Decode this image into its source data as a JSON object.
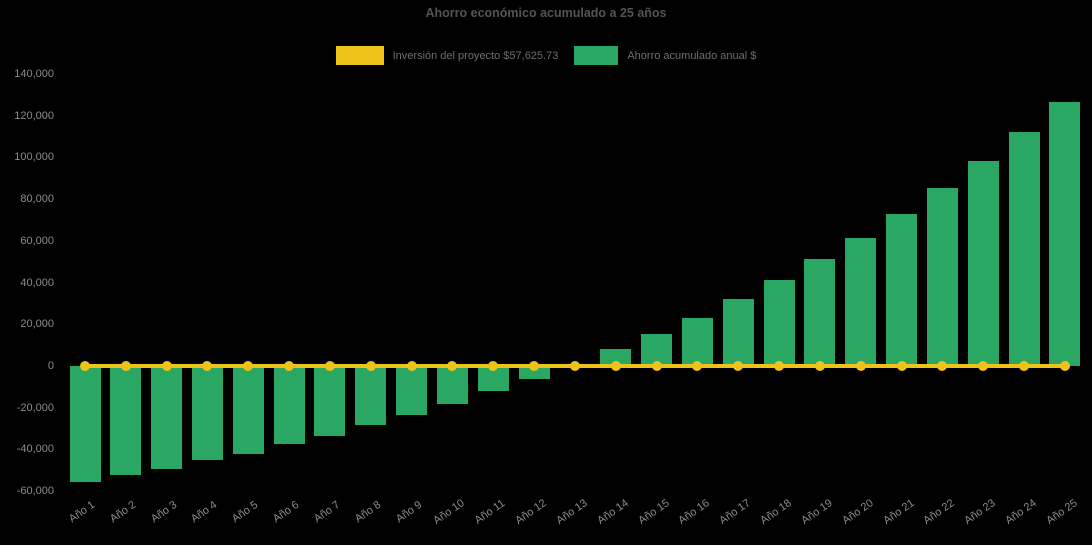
{
  "colors": {
    "background": "#000000",
    "bar": "#2aa763",
    "line": "#eec319",
    "title_text": "#545454",
    "axis_text": "#8c8c8c",
    "legend_text": "#6e6e6e"
  },
  "chart_data": {
    "type": "bar",
    "title": "Ahorro económico acumulado a 25 años",
    "categories": [
      "Año 1",
      "Año 2",
      "Año 3",
      "Año 4",
      "Año 5",
      "Año 6",
      "Año 7",
      "Año 8",
      "Año 9",
      "Año 10",
      "Año 11",
      "Año 12",
      "Año 13",
      "Año 14",
      "Año 15",
      "Año 16",
      "Año 17",
      "Año 18",
      "Año 19",
      "Año 20",
      "Año 21",
      "Año 22",
      "Año 23",
      "Año 24",
      "Año 25"
    ],
    "series": [
      {
        "name": "Inversión del proyecto $57,625.73",
        "type": "line",
        "color": "#eec319",
        "values": [
          0,
          0,
          0,
          0,
          0,
          0,
          0,
          0,
          0,
          0,
          0,
          0,
          0,
          0,
          0,
          0,
          0,
          0,
          0,
          0,
          0,
          0,
          0,
          0,
          0
        ]
      },
      {
        "name": "Ahorro acumulado anual $",
        "type": "bar",
        "color": "#2aa763",
        "values": [
          -55600,
          -52400,
          -49400,
          -44900,
          -42200,
          -37500,
          -33600,
          -28300,
          -23600,
          -18100,
          -12000,
          -6200,
          700,
          8200,
          15300,
          23200,
          32000,
          41200,
          51300,
          61500,
          72900,
          85200,
          98300,
          112100,
          126400
        ]
      }
    ],
    "xlabel": "",
    "ylabel": "",
    "ylim": [
      -60000,
      140000
    ],
    "ytick_step": 20000,
    "ytick_labels": [
      "140,000",
      "120,000",
      "100,000",
      "80,000",
      "60,000",
      "40,000",
      "20,000",
      "0",
      "-20,000",
      "-40,000",
      "-60,000"
    ],
    "grid": false,
    "legend_position": "top"
  }
}
